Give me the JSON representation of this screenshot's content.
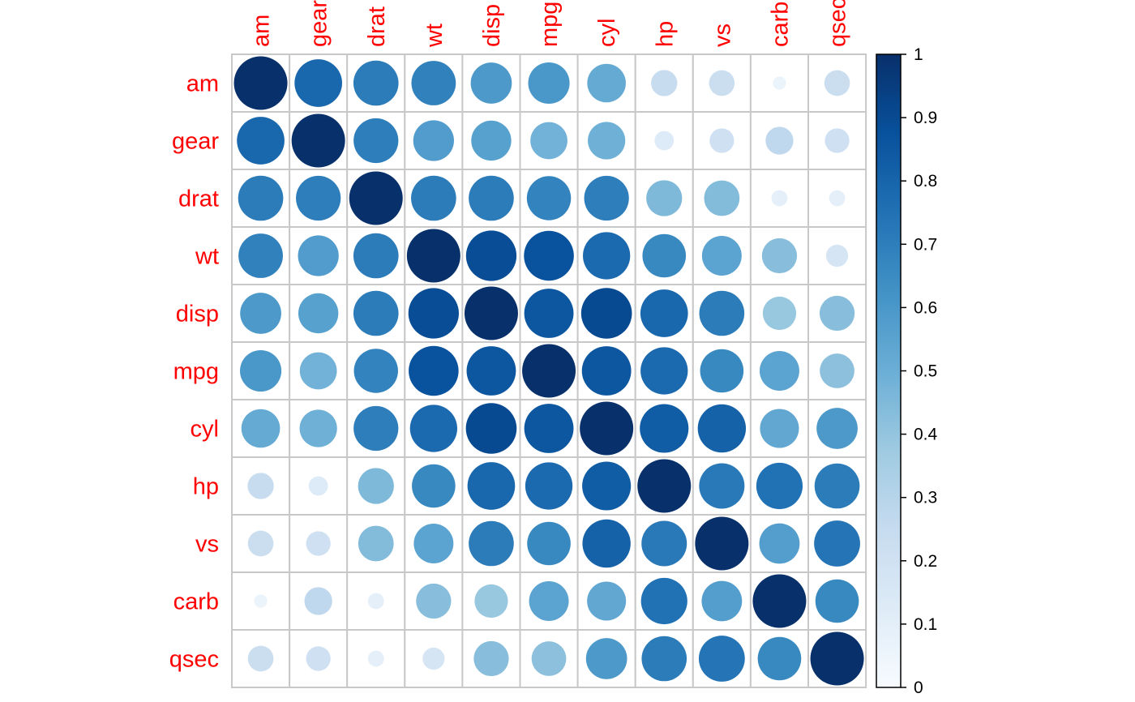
{
  "chart_data": {
    "type": "heatmap",
    "marker": "circle",
    "variables": [
      "am",
      "gear",
      "drat",
      "wt",
      "disp",
      "mpg",
      "cyl",
      "hp",
      "vs",
      "carb",
      "qsec"
    ],
    "values": [
      [
        1.0,
        0.79,
        0.71,
        0.69,
        0.59,
        0.6,
        0.52,
        0.24,
        0.23,
        0.06,
        0.23
      ],
      [
        0.79,
        1.0,
        0.7,
        0.58,
        0.56,
        0.48,
        0.49,
        0.13,
        0.21,
        0.27,
        0.21
      ],
      [
        0.71,
        0.7,
        1.0,
        0.71,
        0.71,
        0.68,
        0.7,
        0.45,
        0.44,
        0.09,
        0.09
      ],
      [
        0.69,
        0.58,
        0.71,
        1.0,
        0.89,
        0.87,
        0.78,
        0.66,
        0.55,
        0.43,
        0.17
      ],
      [
        0.59,
        0.56,
        0.71,
        0.89,
        1.0,
        0.85,
        0.9,
        0.79,
        0.71,
        0.39,
        0.43
      ],
      [
        0.6,
        0.48,
        0.68,
        0.87,
        0.85,
        1.0,
        0.85,
        0.78,
        0.66,
        0.55,
        0.42
      ],
      [
        0.52,
        0.49,
        0.7,
        0.78,
        0.9,
        0.85,
        1.0,
        0.83,
        0.81,
        0.53,
        0.59
      ],
      [
        0.24,
        0.13,
        0.45,
        0.66,
        0.79,
        0.78,
        0.83,
        1.0,
        0.72,
        0.75,
        0.71
      ],
      [
        0.23,
        0.21,
        0.44,
        0.55,
        0.71,
        0.66,
        0.81,
        0.72,
        1.0,
        0.57,
        0.74
      ],
      [
        0.06,
        0.27,
        0.09,
        0.43,
        0.39,
        0.55,
        0.53,
        0.75,
        0.57,
        1.0,
        0.66
      ],
      [
        0.23,
        0.21,
        0.09,
        0.17,
        0.43,
        0.42,
        0.59,
        0.71,
        0.74,
        0.66,
        1.0
      ]
    ],
    "colorbar": {
      "range": [
        0,
        1
      ],
      "ticks": [
        "0",
        "0.1",
        "0.2",
        "0.3",
        "0.4",
        "0.5",
        "0.6",
        "0.7",
        "0.8",
        "0.9",
        "1"
      ],
      "colors": [
        "#F7FBFF",
        "#DEEBF7",
        "#C6DBEF",
        "#9ECAE1",
        "#6BAED6",
        "#4292C6",
        "#2171B5",
        "#08519C",
        "#08306B"
      ]
    },
    "label_color": "#ff0000",
    "grid": true
  }
}
